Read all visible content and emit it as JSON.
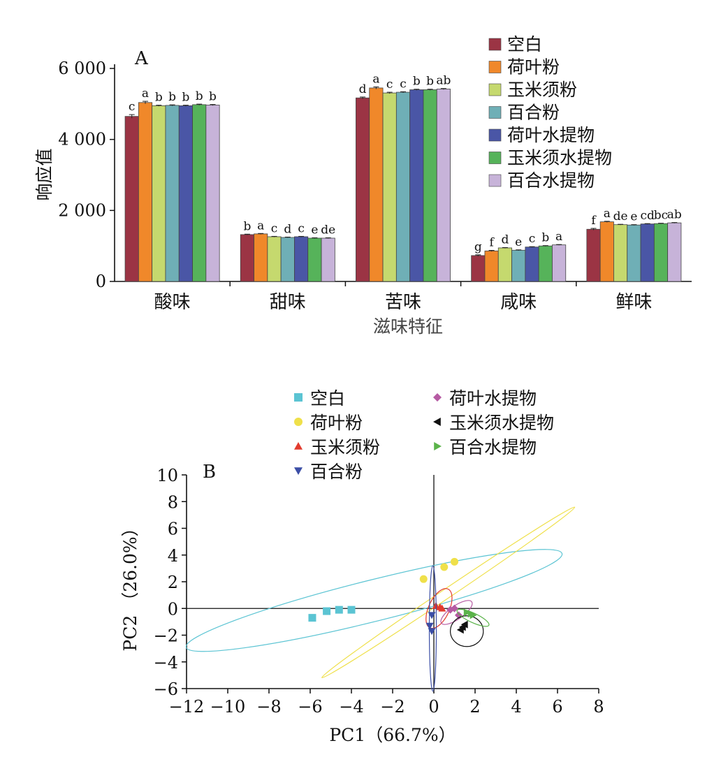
{
  "colors": {
    "series": [
      "#9b3444",
      "#f0882a",
      "#c5d96e",
      "#6fafb6",
      "#4a56a6",
      "#56b35a",
      "#c7b3d9"
    ],
    "pca": {
      "blank": "#5bc4d3",
      "lotus_powder": "#efe04a",
      "corn_silk_powder": "#e23b2e",
      "lily_powder": "#3b4ea6",
      "lotus_extract": "#b65ba3",
      "corn_silk_extract": "#111111",
      "lily_extract": "#5bb34a"
    }
  },
  "chart_data": [
    {
      "type": "bar",
      "panel_label": "A",
      "xlabel": "滋味特征",
      "ylabel": "响应值",
      "ylim": [
        0,
        6000
      ],
      "yticks": [
        0,
        2000,
        4000,
        6000
      ],
      "ytick_labels": [
        "0",
        "2 000",
        "4 000",
        "6 000"
      ],
      "legend_position": "top-right",
      "categories": [
        "酸味",
        "甜味",
        "苦味",
        "咸味",
        "鲜味"
      ],
      "series": [
        {
          "name": "空白",
          "values": [
            4650,
            1320,
            5170,
            730,
            1470
          ],
          "errors": [
            50,
            12,
            25,
            20,
            25
          ],
          "letters": [
            "c",
            "b",
            "d",
            "g",
            "f"
          ]
        },
        {
          "name": "荷叶粉",
          "values": [
            5040,
            1340,
            5450,
            860,
            1680
          ],
          "errors": [
            35,
            12,
            30,
            15,
            15
          ],
          "letters": [
            "a",
            "a",
            "a",
            "f",
            "a"
          ]
        },
        {
          "name": "玉米须粉",
          "values": [
            4950,
            1260,
            5310,
            945,
            1600
          ],
          "errors": [
            15,
            10,
            20,
            10,
            10
          ],
          "letters": [
            "b",
            "c",
            "c",
            "d",
            "de"
          ]
        },
        {
          "name": "百合粉",
          "values": [
            4960,
            1240,
            5330,
            880,
            1590
          ],
          "errors": [
            15,
            10,
            15,
            10,
            10
          ],
          "letters": [
            "b",
            "d",
            "c",
            "e",
            "e"
          ]
        },
        {
          "name": "荷叶水提物",
          "values": [
            4950,
            1260,
            5400,
            970,
            1620
          ],
          "errors": [
            15,
            10,
            15,
            10,
            10
          ],
          "letters": [
            "b",
            "c",
            "b",
            "c",
            "cd"
          ]
        },
        {
          "name": "玉米须水提物",
          "values": [
            4980,
            1220,
            5400,
            1000,
            1630
          ],
          "errors": [
            15,
            10,
            15,
            10,
            10
          ],
          "letters": [
            "b",
            "e",
            "b",
            "b",
            "bc"
          ]
        },
        {
          "name": "百合水提物",
          "values": [
            4970,
            1220,
            5420,
            1030,
            1650
          ],
          "errors": [
            15,
            10,
            15,
            10,
            10
          ],
          "letters": [
            "b",
            "de",
            "ab",
            "a",
            "ab"
          ]
        }
      ]
    },
    {
      "type": "scatter",
      "panel_label": "B",
      "xlabel": "PC1（66.7%）",
      "ylabel": "PC2 （26.0%）",
      "xlim": [
        -12,
        8
      ],
      "ylim": [
        -6,
        10
      ],
      "xticks": [
        -12,
        -10,
        -8,
        -6,
        -4,
        -2,
        0,
        2,
        4,
        6,
        8
      ],
      "xtick_labels": [
        "−12",
        "−10",
        "−8",
        "−6",
        "−4",
        "−2",
        "0",
        "2",
        "4",
        "6",
        "8"
      ],
      "yticks": [
        -6,
        -4,
        -2,
        0,
        2,
        4,
        6,
        8,
        10
      ],
      "ytick_labels": [
        "−6",
        "−4",
        "−2",
        "0",
        "2",
        "4",
        "6",
        "8",
        "10"
      ],
      "legend_position": "top",
      "series": [
        {
          "name": "空白",
          "key": "blank",
          "marker": "square",
          "points": [
            [
              -5.9,
              -0.7
            ],
            [
              -5.2,
              -0.2
            ],
            [
              -4.6,
              -0.1
            ],
            [
              -4.0,
              -0.1
            ]
          ],
          "ellipse": {
            "cx": -2.9,
            "cy": 0.6,
            "rx": 9.4,
            "ry": 1.55,
            "angle": 14
          }
        },
        {
          "name": "荷叶粉",
          "key": "lotus_powder",
          "marker": "circle",
          "points": [
            [
              -0.5,
              2.2
            ],
            [
              0.5,
              3.1
            ],
            [
              1.0,
              3.5
            ]
          ],
          "ellipse": {
            "cx": 0.7,
            "cy": 1.2,
            "rx": 7.4,
            "ry": 0.35,
            "angle": 34
          }
        },
        {
          "name": "玉米须粉",
          "key": "corn_silk_powder",
          "marker": "triangle-up",
          "points": [
            [
              0.1,
              0.2
            ],
            [
              0.3,
              0.1
            ],
            [
              0.4,
              0.0
            ]
          ],
          "ellipse": {
            "cx": 0.25,
            "cy": 0.0,
            "rx": 0.5,
            "ry": 1.6,
            "angle": -25
          }
        },
        {
          "name": "百合粉",
          "key": "lily_powder",
          "marker": "triangle-down",
          "points": [
            [
              -0.1,
              -0.5
            ],
            [
              -0.2,
              -1.3
            ],
            [
              -0.1,
              -1.7
            ]
          ],
          "ellipse": {
            "cx": -0.05,
            "cy": -1.5,
            "rx": 0.17,
            "ry": 4.7,
            "angle": 0
          }
        },
        {
          "name": "荷叶水提物",
          "key": "lotus_extract",
          "marker": "diamond",
          "points": [
            [
              0.8,
              -0.1
            ],
            [
              1.0,
              0.0
            ],
            [
              1.2,
              -0.5
            ]
          ],
          "ellipse": {
            "cx": 1.1,
            "cy": -0.3,
            "rx": 0.9,
            "ry": 0.5,
            "angle": 35
          }
        },
        {
          "name": "玉米须水提物",
          "key": "corn_silk_extract",
          "marker": "triangle-left",
          "points": [
            [
              1.3,
              -1.6
            ],
            [
              1.4,
              -1.4
            ],
            [
              1.5,
              -1.2
            ]
          ],
          "ellipse": {
            "cx": 1.6,
            "cy": -1.7,
            "rx": 0.8,
            "ry": 1.15,
            "angle": 0
          }
        },
        {
          "name": "百合水提物",
          "key": "lily_extract",
          "marker": "triangle-right",
          "points": [
            [
              1.6,
              -0.3
            ],
            [
              1.8,
              -0.4
            ],
            [
              1.9,
              -0.5
            ]
          ],
          "ellipse": {
            "cx": 1.9,
            "cy": -0.7,
            "rx": 0.85,
            "ry": 0.35,
            "angle": -25
          }
        }
      ]
    }
  ]
}
